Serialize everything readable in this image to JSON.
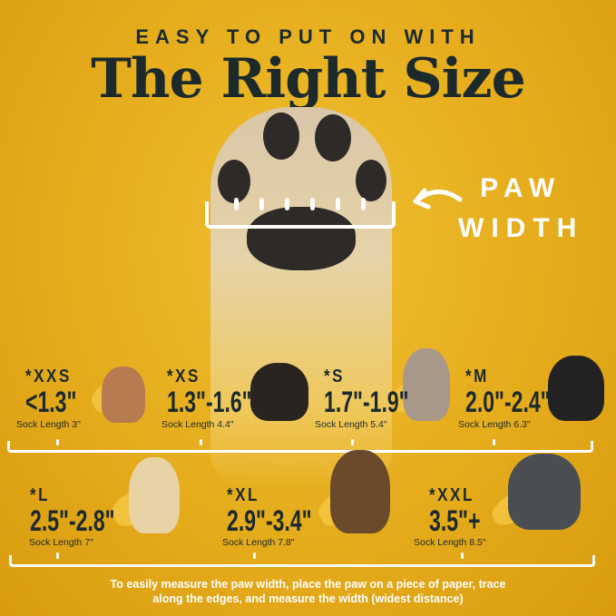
{
  "header": {
    "kicker": "EASY TO PUT ON WITH",
    "title": "The Right Size"
  },
  "paw_label": {
    "line1": "PAW",
    "line2": "WIDTH"
  },
  "sizes_row1": [
    {
      "size": "*XXS",
      "range": "<1.3\"",
      "sock": "Sock Length 3\"",
      "dog": "chihuahua-photo"
    },
    {
      "size": "*XS",
      "range": "1.3\"-1.6\"",
      "sock": "Sock Length 4.4\"",
      "dog": "yorkie-photo"
    },
    {
      "size": "*S",
      "range": "1.7\"-1.9\"",
      "sock": "Sock Length 5.4\"",
      "dog": "french-bulldog-photo"
    },
    {
      "size": "*M",
      "range": "2.0\"-2.4\"",
      "sock": "Sock Length 6.3\"",
      "dog": "bernese-mountain-dog-photo"
    }
  ],
  "sizes_row2": [
    {
      "size": "*L",
      "range": "2.5\"-2.8\"",
      "sock": "Sock Length 7\"",
      "dog": "golden-retriever-photo"
    },
    {
      "size": "*XL",
      "range": "2.9\"-3.4\"",
      "sock": "Sock Length 7.8\"",
      "dog": "german-shepherd-photo"
    },
    {
      "size": "*XXL",
      "range": "3.5\"+",
      "sock": "Sock Length 8.5\"",
      "dog": "great-dane-photo"
    }
  ],
  "footer": {
    "line1": "To easily measure the paw width, place the paw on a piece of paper, trace",
    "line2": "along the edges, and measure the width (widest distance)"
  },
  "colors": {
    "background": "#e5ac1c",
    "text_dark": "#1c2a2c",
    "accent_white": "#ffffff"
  }
}
